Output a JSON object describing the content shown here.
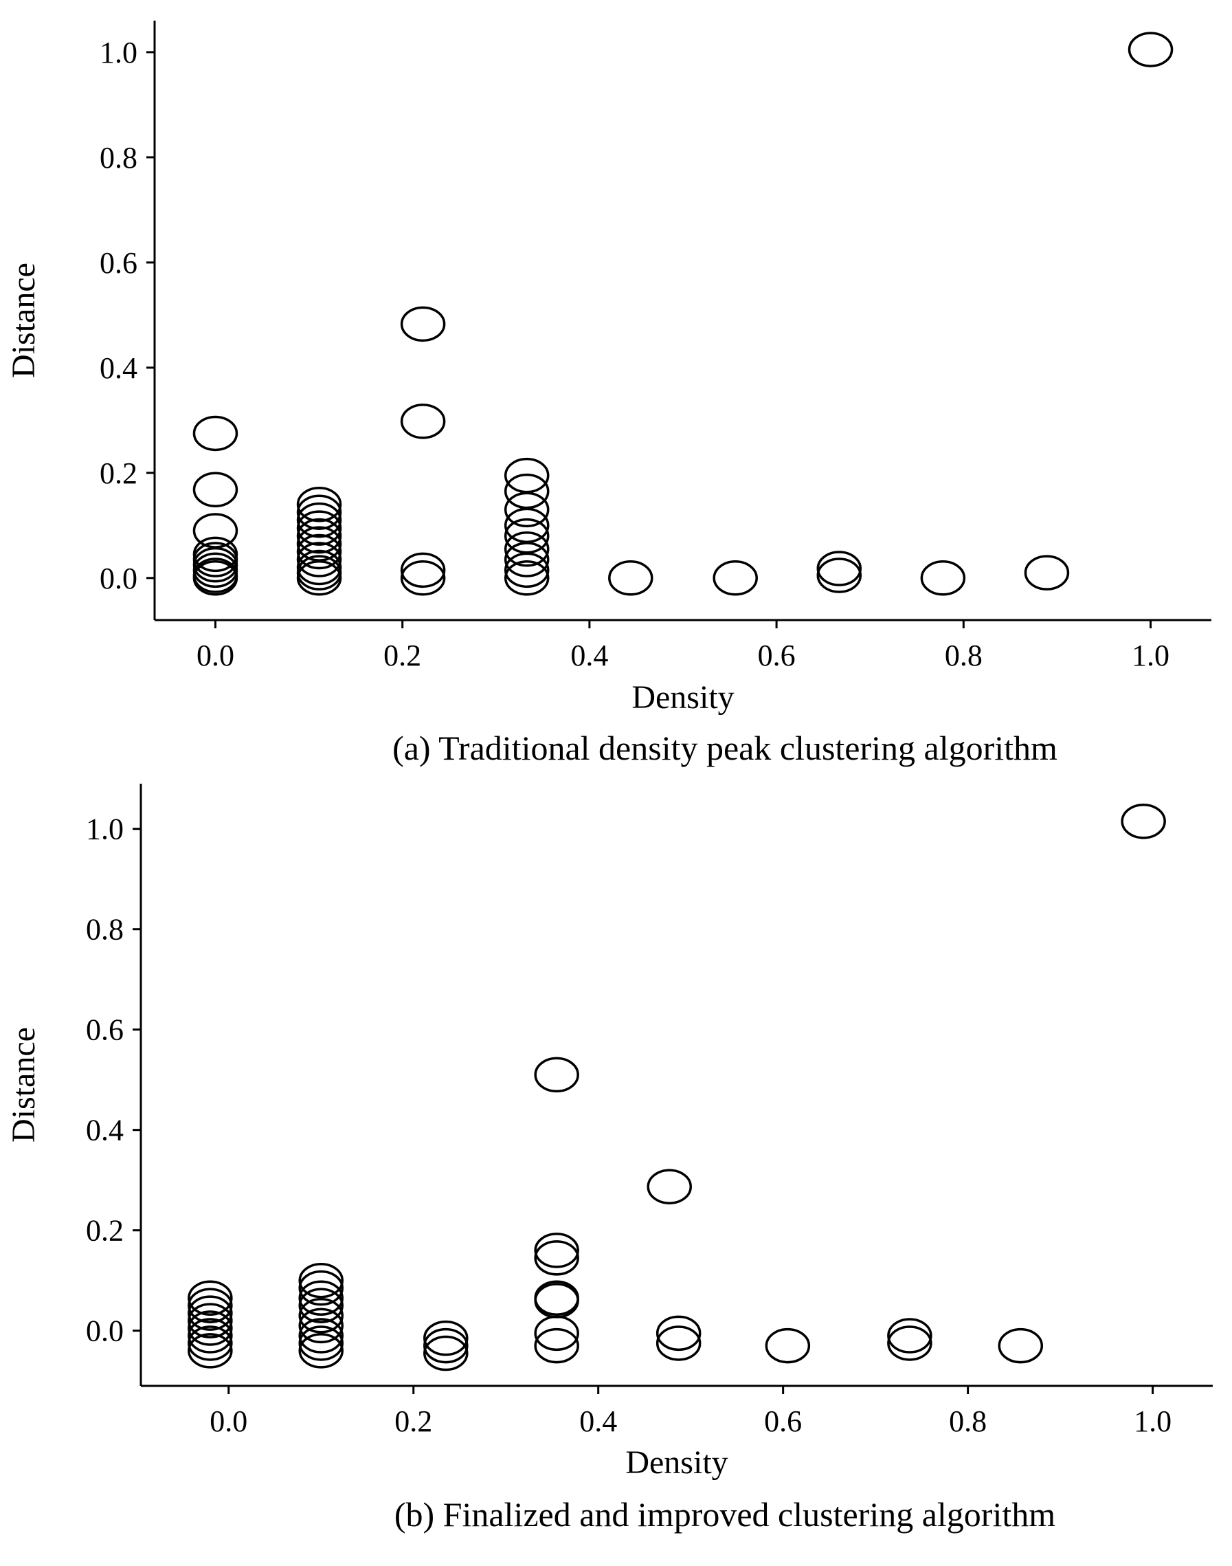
{
  "chart_data": [
    {
      "type": "scatter",
      "panel": "a",
      "caption": "(a) Traditional density peak clustering algorithm",
      "xlabel": "Density",
      "ylabel": "Distance",
      "xlim": [
        -0.065,
        1.065
      ],
      "ylim": [
        -0.08,
        1.06
      ],
      "xticks": [
        0.0,
        0.2,
        0.4,
        0.6,
        0.8,
        1.0
      ],
      "xtick_labels": [
        "0.0",
        "0.2",
        "0.4",
        "0.6",
        "0.8",
        "1.0"
      ],
      "yticks": [
        0.0,
        0.2,
        0.4,
        0.6,
        0.8,
        1.0
      ],
      "ytick_labels": [
        "0.0",
        "0.2",
        "0.4",
        "0.6",
        "0.8",
        "1.0"
      ],
      "grid": false,
      "marker": "open-ellipse",
      "points": [
        {
          "x": 0.0,
          "y": 0.275
        },
        {
          "x": 0.0,
          "y": 0.168
        },
        {
          "x": 0.0,
          "y": 0.09
        },
        {
          "x": 0.0,
          "y": 0.045
        },
        {
          "x": 0.0,
          "y": 0.035
        },
        {
          "x": 0.0,
          "y": 0.025
        },
        {
          "x": 0.0,
          "y": 0.015
        },
        {
          "x": 0.0,
          "y": 0.005
        },
        {
          "x": 0.0,
          "y": 0.0
        },
        {
          "x": 0.111,
          "y": 0.14
        },
        {
          "x": 0.111,
          "y": 0.125
        },
        {
          "x": 0.111,
          "y": 0.11
        },
        {
          "x": 0.111,
          "y": 0.095
        },
        {
          "x": 0.111,
          "y": 0.08
        },
        {
          "x": 0.111,
          "y": 0.065
        },
        {
          "x": 0.111,
          "y": 0.05
        },
        {
          "x": 0.111,
          "y": 0.035
        },
        {
          "x": 0.111,
          "y": 0.02
        },
        {
          "x": 0.111,
          "y": 0.01
        },
        {
          "x": 0.111,
          "y": 0.0
        },
        {
          "x": 0.222,
          "y": 0.483
        },
        {
          "x": 0.222,
          "y": 0.298
        },
        {
          "x": 0.222,
          "y": 0.015
        },
        {
          "x": 0.222,
          "y": 0.0
        },
        {
          "x": 0.333,
          "y": 0.195
        },
        {
          "x": 0.333,
          "y": 0.165
        },
        {
          "x": 0.333,
          "y": 0.13
        },
        {
          "x": 0.333,
          "y": 0.1
        },
        {
          "x": 0.333,
          "y": 0.08
        },
        {
          "x": 0.333,
          "y": 0.055
        },
        {
          "x": 0.333,
          "y": 0.035
        },
        {
          "x": 0.333,
          "y": 0.015
        },
        {
          "x": 0.333,
          "y": 0.0
        },
        {
          "x": 0.444,
          "y": 0.0
        },
        {
          "x": 0.556,
          "y": 0.0
        },
        {
          "x": 0.667,
          "y": 0.018
        },
        {
          "x": 0.667,
          "y": 0.005
        },
        {
          "x": 0.778,
          "y": 0.0
        },
        {
          "x": 0.889,
          "y": 0.01
        },
        {
          "x": 1.0,
          "y": 1.005
        }
      ]
    },
    {
      "type": "scatter",
      "panel": "b",
      "caption": "(b) Finalized and improved clustering algorithm",
      "xlabel": "Density",
      "ylabel": "Distance",
      "xlim": [
        -0.095,
        1.065
      ],
      "ylim": [
        -0.11,
        1.09
      ],
      "xticks": [
        0.0,
        0.2,
        0.4,
        0.6,
        0.8,
        1.0
      ],
      "xtick_labels": [
        "0.0",
        "0.2",
        "0.4",
        "0.6",
        "0.8",
        "1.0"
      ],
      "yticks": [
        0.0,
        0.2,
        0.4,
        0.6,
        0.8,
        1.0
      ],
      "ytick_labels": [
        "0.0",
        "0.2",
        "0.4",
        "0.6",
        "0.8",
        "1.0"
      ],
      "grid": false,
      "marker": "open-ellipse",
      "points": [
        {
          "x": -0.02,
          "y": 0.065
        },
        {
          "x": -0.02,
          "y": 0.05
        },
        {
          "x": -0.02,
          "y": 0.035
        },
        {
          "x": -0.02,
          "y": 0.02
        },
        {
          "x": -0.02,
          "y": 0.005
        },
        {
          "x": -0.02,
          "y": -0.01
        },
        {
          "x": -0.02,
          "y": -0.025
        },
        {
          "x": -0.02,
          "y": -0.04
        },
        {
          "x": 0.1,
          "y": 0.1
        },
        {
          "x": 0.1,
          "y": 0.085
        },
        {
          "x": 0.1,
          "y": 0.065
        },
        {
          "x": 0.1,
          "y": 0.05
        },
        {
          "x": 0.1,
          "y": 0.03
        },
        {
          "x": 0.1,
          "y": 0.01
        },
        {
          "x": 0.1,
          "y": -0.01
        },
        {
          "x": 0.1,
          "y": -0.025
        },
        {
          "x": 0.1,
          "y": -0.04
        },
        {
          "x": 0.235,
          "y": -0.015
        },
        {
          "x": 0.235,
          "y": -0.03
        },
        {
          "x": 0.235,
          "y": -0.045
        },
        {
          "x": 0.355,
          "y": 0.51
        },
        {
          "x": 0.355,
          "y": 0.16
        },
        {
          "x": 0.355,
          "y": 0.145
        },
        {
          "x": 0.355,
          "y": 0.065
        },
        {
          "x": 0.355,
          "y": 0.06
        },
        {
          "x": 0.355,
          "y": -0.005
        },
        {
          "x": 0.355,
          "y": -0.03
        },
        {
          "x": 0.477,
          "y": 0.287
        },
        {
          "x": 0.487,
          "y": -0.005
        },
        {
          "x": 0.487,
          "y": -0.025
        },
        {
          "x": 0.605,
          "y": -0.03
        },
        {
          "x": 0.737,
          "y": -0.01
        },
        {
          "x": 0.737,
          "y": -0.025
        },
        {
          "x": 0.857,
          "y": -0.03
        },
        {
          "x": 0.99,
          "y": 1.015
        }
      ]
    }
  ]
}
